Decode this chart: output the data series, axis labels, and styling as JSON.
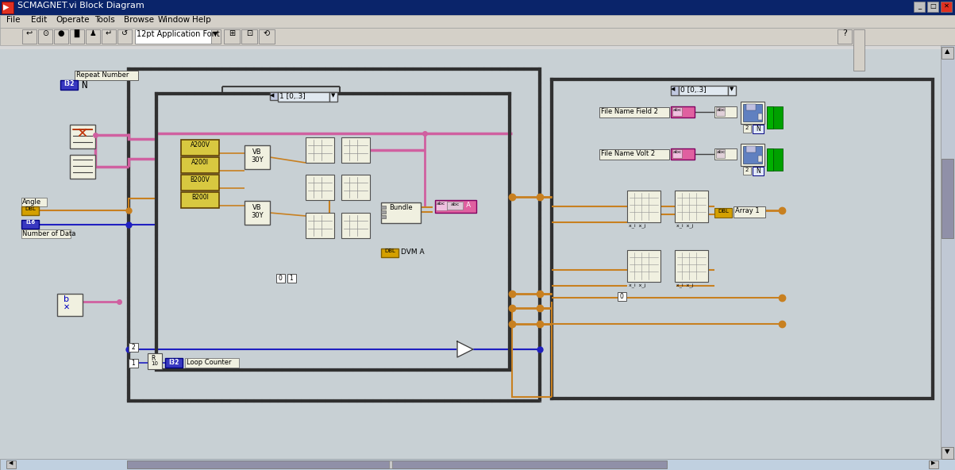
{
  "title": "SCMAGNET.vi Block Diagram",
  "bg_color": "#c8d0d4",
  "canvas_bg": "#c8d0d4",
  "title_bar_color": "#0a246a",
  "title_text_color": "#ffffff",
  "menu_bar_color": "#d4d0c8",
  "toolbar_color": "#d4d0c8",
  "menu_items": [
    "File",
    "Edit",
    "Operate",
    "Tools",
    "Browse",
    "Window",
    "Help"
  ],
  "toolbar_font": "12pt Application Font",
  "wire_orange": "#c88020",
  "wire_pink": "#d060a0",
  "wire_blue": "#2020c0",
  "wire_green": "#00a000",
  "box_yellow": "#d8c840",
  "box_border": "#604000",
  "indicator_pink": "#e060a0",
  "node_orange": "#c87010",
  "node_blue": "#0000c0",
  "label_bg": "#f0f0e0",
  "hash_border": "#606060",
  "status_bar_color": "#c0d0e0",
  "scrollbar_thumb": "#8090a8",
  "win_btn_color": "#c8c8c8"
}
